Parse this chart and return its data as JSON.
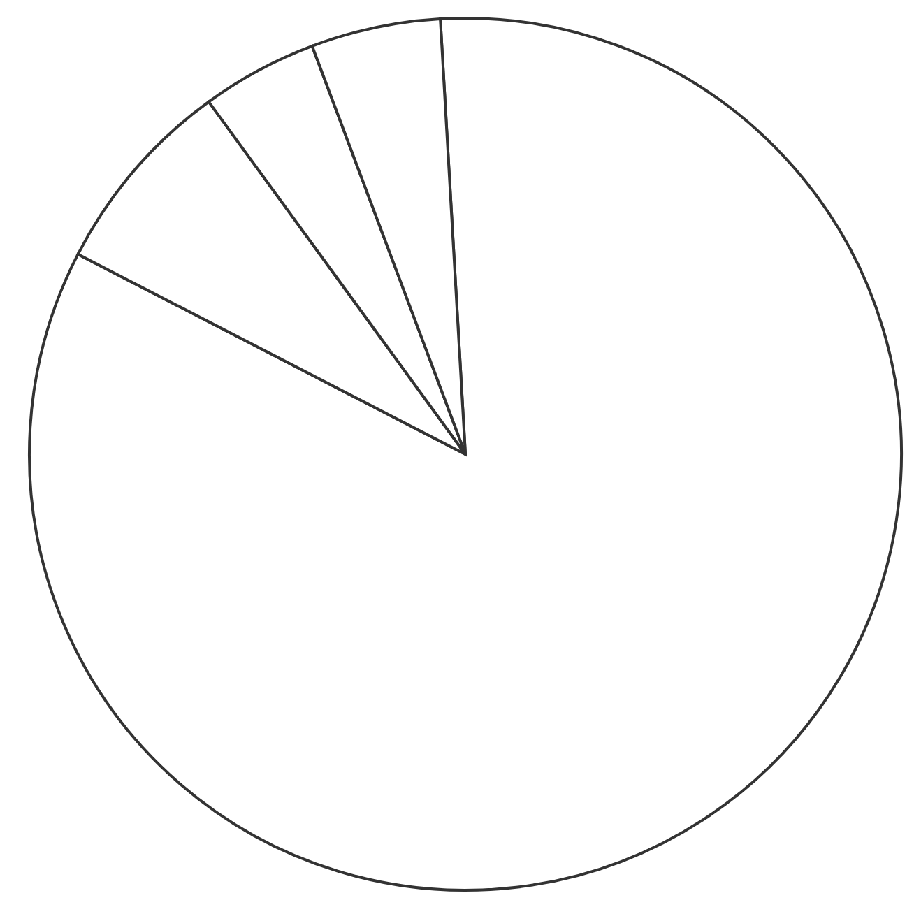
{
  "chart_data": {
    "type": "pie",
    "categories": [
      null,
      null,
      null,
      null
    ],
    "values": [
      83.5,
      7.4,
      4.3,
      4.8
    ],
    "colors": [
      "#ffffff",
      "#ffffff",
      "#ffffff",
      "#ffffff"
    ]
  }
}
